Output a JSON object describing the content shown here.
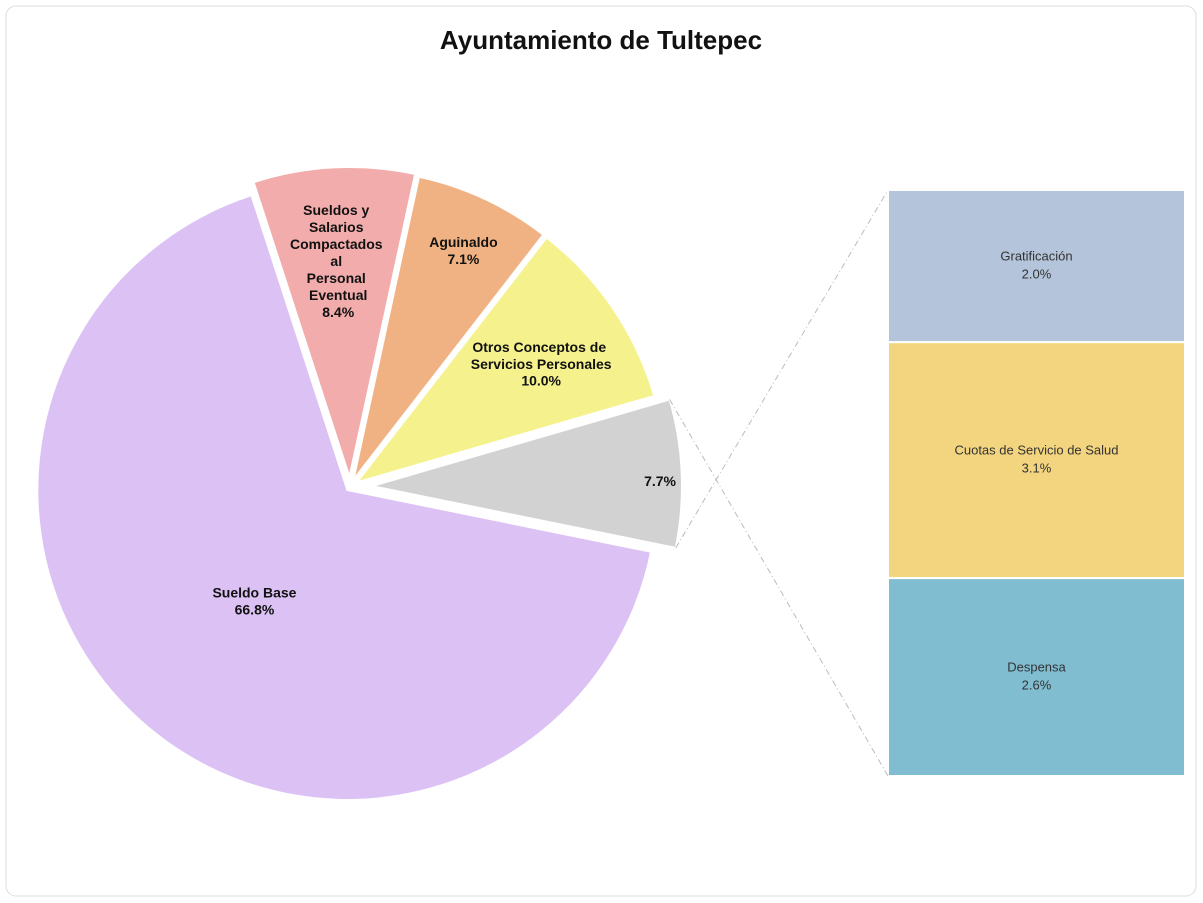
{
  "chart_data": [
    {
      "type": "pie",
      "title": "Ayuntamiento de Tultepec",
      "categories": [
        "Sueldo Base",
        "Sueldos y Salarios Compactados al Personal Eventual",
        "Aguinaldo",
        "Otros Conceptos de Servicios Personales",
        null
      ],
      "values": [
        66.8,
        8.4,
        7.1,
        10.0,
        7.7
      ],
      "value_labels": [
        "66.8%",
        "8.4%",
        "7.1%",
        "10.0%",
        "7.7%"
      ],
      "colors": [
        "#dcc2f4",
        "#f2acac",
        "#f0b283",
        "#f5f28e",
        "#d2d2d2"
      ]
    },
    {
      "type": "bar",
      "categories": [
        "Gratificación",
        "Cuotas de Servicio de Salud",
        "Despensa"
      ],
      "values": [
        2.0,
        3.1,
        2.6
      ],
      "value_labels": [
        "2.0%",
        "3.1%",
        "2.6%"
      ],
      "colors": [
        "#b4c4da",
        "#f3d57f",
        "#80bdd1"
      ]
    }
  ]
}
